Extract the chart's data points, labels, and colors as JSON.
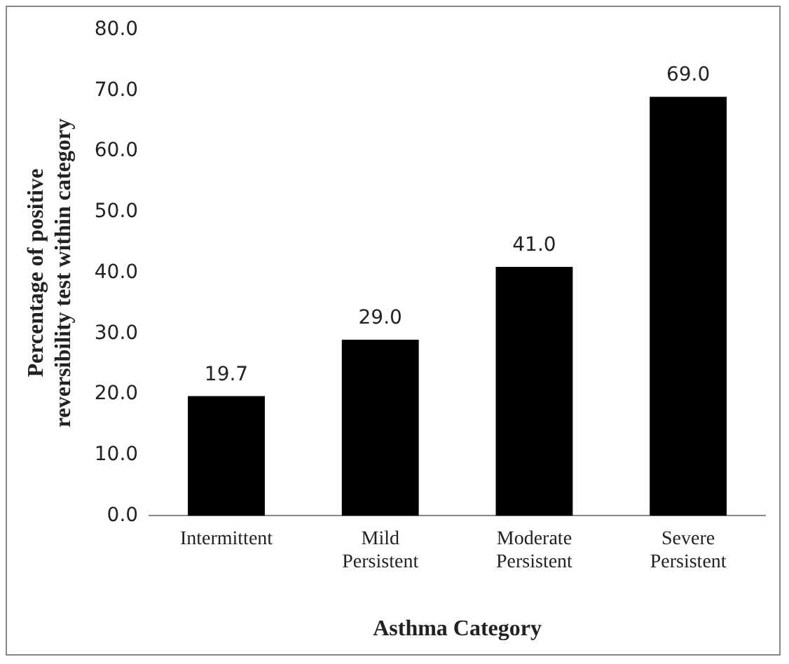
{
  "chart_data": {
    "type": "bar",
    "xlabel": "Asthma Category",
    "ylabel": "Percentage of positive reversibility test within category",
    "categories": [
      "Intermittent",
      "Mild Persistent",
      "Moderate Persistent",
      "Severe Persistent"
    ],
    "values": [
      19.7,
      29.0,
      41.0,
      69.0
    ],
    "color": "#000000",
    "ylim": [
      0,
      80
    ],
    "yticks": [
      {
        "value": 0,
        "label": "0.0"
      },
      {
        "value": 10,
        "label": "10.0"
      },
      {
        "value": 20,
        "label": "20.0"
      },
      {
        "value": 30,
        "label": "30.0"
      },
      {
        "value": 40,
        "label": "40.0"
      },
      {
        "value": 50,
        "label": "50.0"
      },
      {
        "value": 60,
        "label": "60.0"
      },
      {
        "value": 70,
        "label": "70.0"
      },
      {
        "value": 80,
        "label": "80.0"
      }
    ],
    "value_labels": [
      "19.7",
      "29.0",
      "41.0",
      "69.0"
    ],
    "grid": false,
    "legend": false
  }
}
